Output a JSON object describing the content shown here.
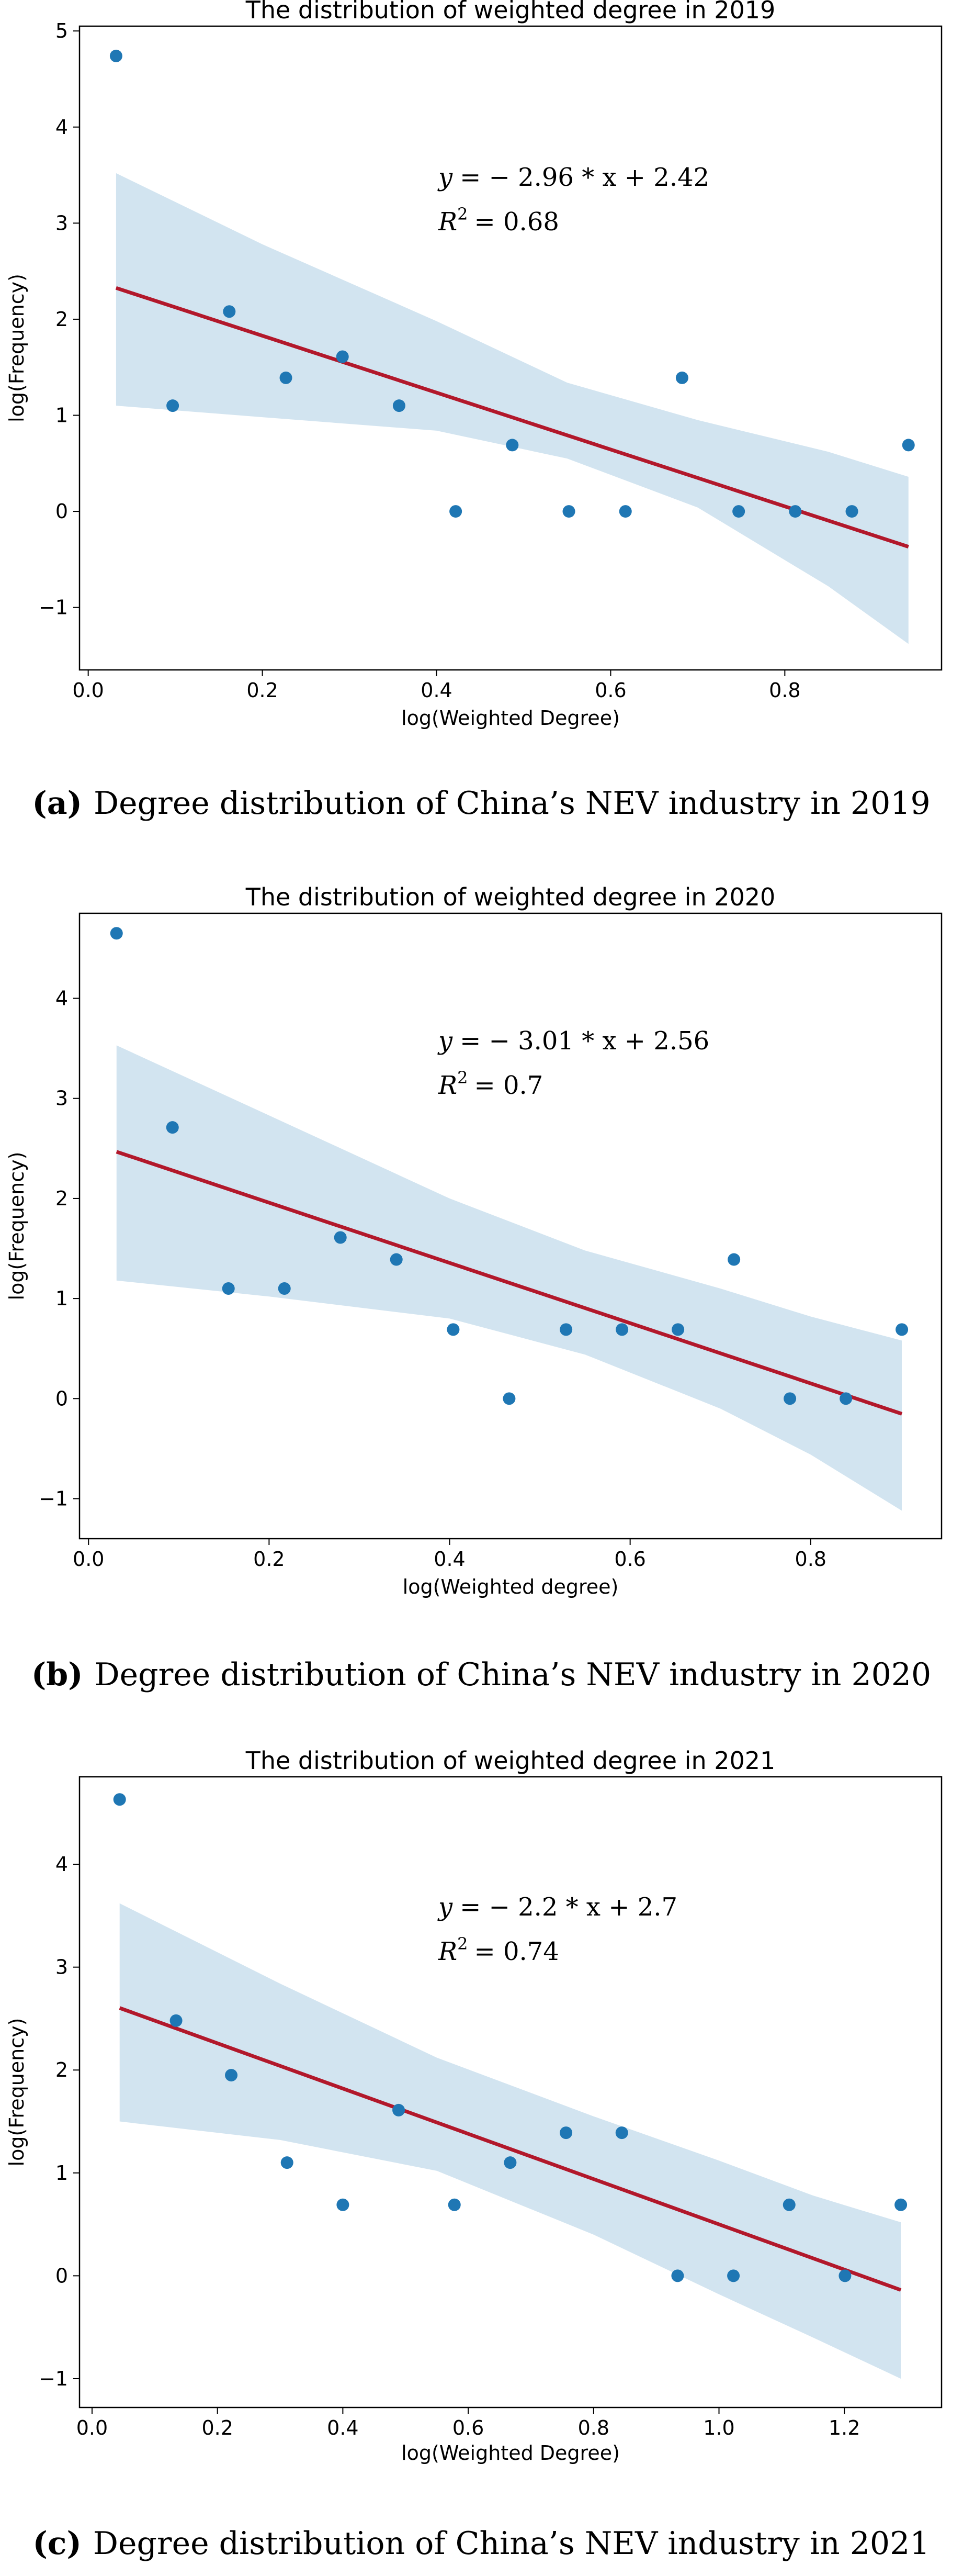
{
  "chart_data": [
    {
      "type": "scatter",
      "title": "The distribution of weighted degree in 2019",
      "xlabel": "log(Weighted Degree)",
      "ylabel": "log(Frequency)",
      "xlim": [
        -0.01,
        0.98
      ],
      "ylim": [
        -1.65,
        5.05
      ],
      "xticks": [
        0.0,
        0.2,
        0.4,
        0.6,
        0.8
      ],
      "xtick_labels": [
        "0.0",
        "0.2",
        "0.4",
        "0.6",
        "0.8"
      ],
      "yticks": [
        -1,
        0,
        1,
        2,
        3,
        4,
        5
      ],
      "ytick_labels": [
        "−1",
        "0",
        "1",
        "2",
        "3",
        "4",
        "5"
      ],
      "points": [
        {
          "x": 0.032,
          "y": 4.74
        },
        {
          "x": 0.097,
          "y": 1.1
        },
        {
          "x": 0.162,
          "y": 2.08
        },
        {
          "x": 0.227,
          "y": 1.39
        },
        {
          "x": 0.292,
          "y": 1.61
        },
        {
          "x": 0.357,
          "y": 1.1
        },
        {
          "x": 0.422,
          "y": 0.0
        },
        {
          "x": 0.487,
          "y": 0.69
        },
        {
          "x": 0.552,
          "y": 0.0
        },
        {
          "x": 0.617,
          "y": 0.0
        },
        {
          "x": 0.682,
          "y": 1.39
        },
        {
          "x": 0.747,
          "y": 0.0
        },
        {
          "x": 0.812,
          "y": 0.0
        },
        {
          "x": 0.877,
          "y": 0.0
        },
        {
          "x": 0.942,
          "y": 0.69
        }
      ],
      "fit": {
        "slope": -2.96,
        "intercept": 2.42,
        "x_range": [
          0.032,
          0.942
        ]
      },
      "band_upper": [
        [
          0.032,
          3.52
        ],
        [
          0.2,
          2.78
        ],
        [
          0.4,
          1.98
        ],
        [
          0.55,
          1.34
        ],
        [
          0.7,
          0.95
        ],
        [
          0.85,
          0.62
        ],
        [
          0.942,
          0.36
        ]
      ],
      "band_lower": [
        [
          0.032,
          1.1
        ],
        [
          0.2,
          0.98
        ],
        [
          0.4,
          0.84
        ],
        [
          0.55,
          0.55
        ],
        [
          0.7,
          0.04
        ],
        [
          0.85,
          -0.78
        ],
        [
          0.942,
          -1.38
        ]
      ],
      "equation_lhs": "y",
      "equation_rhs": "= − 2.96 * x + 2.42",
      "r2_label": "R",
      "r2_exp": "2",
      "r2_rhs": "= 0.68",
      "caption_label": "(a)",
      "caption_text": "Degree distribution of China’s NEV industry in 2019"
    },
    {
      "type": "scatter",
      "title": "The distribution of weighted degree in 2020",
      "xlabel": "log(Weighted degree)",
      "ylabel": "log(Frequency)",
      "xlim": [
        -0.01,
        0.945
      ],
      "ylim": [
        -1.4,
        4.85
      ],
      "xticks": [
        0.0,
        0.2,
        0.4,
        0.6,
        0.8
      ],
      "xtick_labels": [
        "0.0",
        "0.2",
        "0.4",
        "0.6",
        "0.8"
      ],
      "yticks": [
        -1,
        0,
        1,
        2,
        3,
        4
      ],
      "ytick_labels": [
        "−1",
        "0",
        "1",
        "2",
        "3",
        "4"
      ],
      "points": [
        {
          "x": 0.031,
          "y": 4.65
        },
        {
          "x": 0.093,
          "y": 2.71
        },
        {
          "x": 0.155,
          "y": 1.1
        },
        {
          "x": 0.217,
          "y": 1.1
        },
        {
          "x": 0.279,
          "y": 1.61
        },
        {
          "x": 0.341,
          "y": 1.39
        },
        {
          "x": 0.404,
          "y": 0.69
        },
        {
          "x": 0.466,
          "y": 0.0
        },
        {
          "x": 0.529,
          "y": 0.69
        },
        {
          "x": 0.591,
          "y": 0.69
        },
        {
          "x": 0.653,
          "y": 0.69
        },
        {
          "x": 0.715,
          "y": 1.39
        },
        {
          "x": 0.777,
          "y": 0.0
        },
        {
          "x": 0.839,
          "y": 0.0
        },
        {
          "x": 0.901,
          "y": 0.69
        }
      ],
      "fit": {
        "slope": -3.01,
        "intercept": 2.56,
        "x_range": [
          0.031,
          0.901
        ]
      },
      "band_upper": [
        [
          0.031,
          3.53
        ],
        [
          0.2,
          2.83
        ],
        [
          0.4,
          2.0
        ],
        [
          0.55,
          1.48
        ],
        [
          0.7,
          1.1
        ],
        [
          0.8,
          0.82
        ],
        [
          0.901,
          0.58
        ]
      ],
      "band_lower": [
        [
          0.031,
          1.18
        ],
        [
          0.2,
          1.02
        ],
        [
          0.4,
          0.8
        ],
        [
          0.55,
          0.44
        ],
        [
          0.7,
          -0.1
        ],
        [
          0.8,
          -0.56
        ],
        [
          0.901,
          -1.12
        ]
      ],
      "equation_lhs": "y",
      "equation_rhs": "= − 3.01 * x + 2.56",
      "r2_label": "R",
      "r2_exp": "2",
      "r2_rhs": "= 0.7",
      "caption_label": "(b)",
      "caption_text": "Degree distribution of China’s NEV industry in 2020"
    },
    {
      "type": "scatter",
      "title": "The distribution of weighted degree in 2021",
      "xlabel": "log(Weighted Degree)",
      "ylabel": "log(Frequency)",
      "xlim": [
        -0.02,
        1.355
      ],
      "ylim": [
        -1.28,
        4.85
      ],
      "xticks": [
        0.0,
        0.2,
        0.4,
        0.6,
        0.8,
        1.0,
        1.2
      ],
      "xtick_labels": [
        "0.0",
        "0.2",
        "0.4",
        "0.6",
        "0.8",
        "1.0",
        "1.2"
      ],
      "yticks": [
        -1,
        0,
        1,
        2,
        3,
        4
      ],
      "ytick_labels": [
        "−1",
        "0",
        "1",
        "2",
        "3",
        "4"
      ],
      "points": [
        {
          "x": 0.044,
          "y": 4.63
        },
        {
          "x": 0.134,
          "y": 2.48
        },
        {
          "x": 0.222,
          "y": 1.95
        },
        {
          "x": 0.311,
          "y": 1.1
        },
        {
          "x": 0.4,
          "y": 0.69
        },
        {
          "x": 0.489,
          "y": 1.61
        },
        {
          "x": 0.578,
          "y": 0.69
        },
        {
          "x": 0.667,
          "y": 1.1
        },
        {
          "x": 0.756,
          "y": 1.39
        },
        {
          "x": 0.845,
          "y": 1.39
        },
        {
          "x": 0.934,
          "y": 0.0
        },
        {
          "x": 1.023,
          "y": 0.0
        },
        {
          "x": 1.112,
          "y": 0.69
        },
        {
          "x": 1.201,
          "y": 0.0
        },
        {
          "x": 1.29,
          "y": 0.69
        }
      ],
      "fit": {
        "slope": -2.2,
        "intercept": 2.7,
        "x_range": [
          0.044,
          1.29
        ]
      },
      "band_upper": [
        [
          0.044,
          3.62
        ],
        [
          0.3,
          2.84
        ],
        [
          0.55,
          2.12
        ],
        [
          0.8,
          1.55
        ],
        [
          1.0,
          1.12
        ],
        [
          1.15,
          0.78
        ],
        [
          1.29,
          0.52
        ]
      ],
      "band_lower": [
        [
          0.044,
          1.5
        ],
        [
          0.3,
          1.32
        ],
        [
          0.55,
          1.02
        ],
        [
          0.8,
          0.4
        ],
        [
          1.0,
          -0.18
        ],
        [
          1.15,
          -0.6
        ],
        [
          1.29,
          -1.0
        ]
      ],
      "equation_lhs": "y",
      "equation_rhs": "= − 2.2 * x + 2.7",
      "r2_label": "R",
      "r2_exp": "2",
      "r2_rhs": "= 0.74",
      "caption_label": "(c)",
      "caption_text": "Degree distribution of China’s NEV industry in 2021"
    }
  ]
}
